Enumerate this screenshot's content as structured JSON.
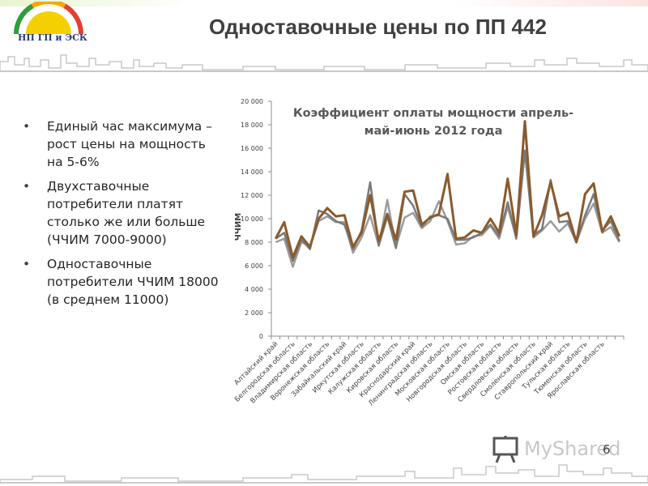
{
  "header": {
    "title": "Одноставочные цены по ПП 442",
    "logo_text": "НП ГП и ЭСК"
  },
  "bullets": [
    "Единый час максимума – рост цены на мощность на 5-6%",
    "Двухставочные потребители платят столько же или больше (ЧЧИМ 7000-9000)",
    "Одноставочные потребители ЧЧИМ 18000 (в среднем 11000)"
  ],
  "watermark": {
    "text": "MyShared"
  },
  "page_number": "6",
  "chart_data": {
    "type": "line",
    "title": "Коэффициент оплаты мощности апрель-май-июнь 2012 года",
    "title_lines": [
      "Коэффициент оплаты мощности апрель-",
      "май-июнь 2012 года"
    ],
    "ylabel": "ЧЧИМ",
    "xlabel": "",
    "ylim": [
      0,
      20000
    ],
    "yticks": [
      "0",
      "2 000",
      "4 000",
      "6 000",
      "8 000",
      "10 000",
      "12 000",
      "14 000",
      "16 000",
      "18 000",
      "20 000"
    ],
    "grid": false,
    "legend": "none",
    "x_labels": [
      "Алтайский край",
      "Белгородская область",
      "Владимирская область",
      "Воронежская область",
      "Забайкальский край",
      "Иркутская область",
      "Калужская область",
      "Кировская область",
      "Краснодарский край",
      "Ленинградская область",
      "Московская область",
      "Новгородская область",
      "Омская область",
      "Ростовская область",
      "Свердловская область",
      "Смоленская область",
      "Ставропольский край",
      "Тульская область",
      "Тюменская область",
      "Ярославская область"
    ],
    "series": [
      {
        "color": "#9c9c9c",
        "values": [
          8000,
          8300,
          5900,
          8000,
          7700,
          9800,
          10200,
          9700,
          9700,
          7100,
          8400,
          10300,
          7700,
          11600,
          7600,
          10100,
          10500,
          9200,
          9800,
          11500,
          9800,
          7800,
          7900,
          8500,
          8600,
          9400,
          8300,
          11000,
          8400,
          15800,
          8400,
          9000,
          9800,
          8900,
          9600,
          8000,
          10000,
          11300,
          8800,
          9300,
          8000
        ]
      },
      {
        "color": "#7a7a7a",
        "values": [
          8300,
          8800,
          6400,
          8200,
          7400,
          10700,
          10400,
          9800,
          9500,
          7400,
          9000,
          13100,
          7700,
          10200,
          7500,
          12100,
          11100,
          9300,
          10200,
          10300,
          10000,
          8200,
          8200,
          8400,
          8800,
          9500,
          8500,
          11400,
          8300,
          15800,
          8600,
          9100,
          13300,
          9700,
          9800,
          8000,
          10300,
          12100,
          9000,
          9800,
          8100
        ]
      },
      {
        "color": "#8b5a2b",
        "values": [
          8300,
          9700,
          6700,
          8500,
          7600,
          10000,
          10900,
          10200,
          10300,
          7600,
          8800,
          12000,
          8100,
          10400,
          8200,
          12300,
          12400,
          9500,
          10100,
          10400,
          13800,
          8300,
          8400,
          9000,
          8800,
          10000,
          8800,
          13400,
          8600,
          18300,
          8500,
          10300,
          13100,
          10200,
          10500,
          8000,
          12100,
          13000,
          8900,
          10200,
          8500
        ]
      }
    ]
  }
}
